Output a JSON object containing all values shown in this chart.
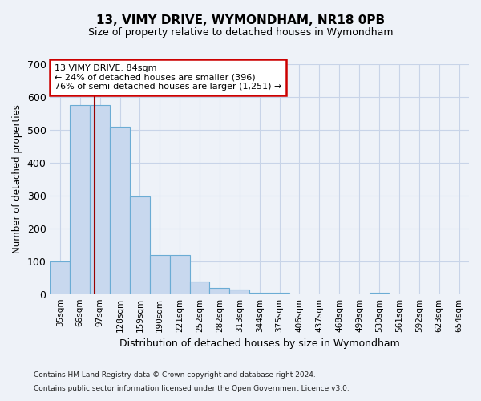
{
  "title_line1": "13, VIMY DRIVE, WYMONDHAM, NR18 0PB",
  "title_line2": "Size of property relative to detached houses in Wymondham",
  "xlabel": "Distribution of detached houses by size in Wymondham",
  "ylabel": "Number of detached properties",
  "bar_labels": [
    "35sqm",
    "66sqm",
    "97sqm",
    "128sqm",
    "159sqm",
    "190sqm",
    "221sqm",
    "252sqm",
    "282sqm",
    "313sqm",
    "344sqm",
    "375sqm",
    "406sqm",
    "437sqm",
    "468sqm",
    "499sqm",
    "530sqm",
    "561sqm",
    "592sqm",
    "623sqm",
    "654sqm"
  ],
  "bar_values": [
    100,
    575,
    575,
    510,
    297,
    118,
    118,
    38,
    18,
    13,
    5,
    5,
    0,
    0,
    0,
    0,
    5,
    0,
    0,
    0,
    0
  ],
  "bar_color": "#c8d8ee",
  "bar_edge_color": "#6bacd4",
  "grid_color": "#c8d4e8",
  "background_color": "#eef2f8",
  "vline_x": 1.72,
  "vline_color": "#990000",
  "annotation_text": "13 VIMY DRIVE: 84sqm\n← 24% of detached houses are smaller (396)\n76% of semi-detached houses are larger (1,251) →",
  "annotation_box_facecolor": "#ffffff",
  "annotation_box_edgecolor": "#cc0000",
  "ylim": [
    0,
    700
  ],
  "yticks": [
    0,
    100,
    200,
    300,
    400,
    500,
    600,
    700
  ],
  "footnote_line1": "Contains HM Land Registry data © Crown copyright and database right 2024.",
  "footnote_line2": "Contains public sector information licensed under the Open Government Licence v3.0.",
  "fig_width": 6.0,
  "fig_height": 5.0
}
